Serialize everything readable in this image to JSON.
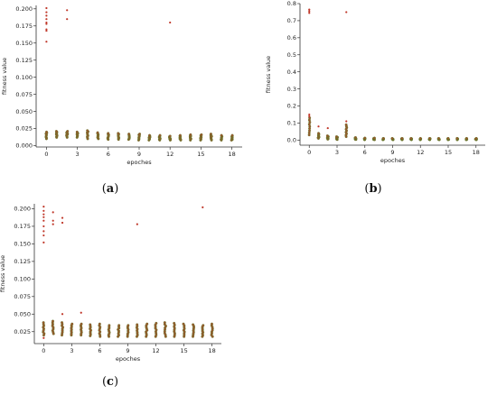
{
  "chart_data": [
    {
      "type": "scatter",
      "panel": "(a)",
      "panel_letter": "a",
      "xlabel": "epoches",
      "ylabel": "fitness value",
      "xlim": [
        -1,
        19
      ],
      "ylim": [
        -0.002,
        0.205
      ],
      "xticks": [
        0,
        3,
        6,
        9,
        12,
        15,
        18
      ],
      "yticks": [
        0.0,
        0.025,
        0.05,
        0.075,
        0.1,
        0.125,
        0.15,
        0.175,
        0.2
      ],
      "ytick_labels": [
        "0.000",
        "0.025",
        "0.050",
        "0.075",
        "0.100",
        "0.125",
        "0.150",
        "0.175",
        "0.200"
      ],
      "outliers": [
        [
          0,
          0.201
        ],
        [
          0,
          0.195
        ],
        [
          0,
          0.19
        ],
        [
          0,
          0.185
        ],
        [
          0,
          0.18
        ],
        [
          0,
          0.178
        ],
        [
          0,
          0.17
        ],
        [
          0,
          0.168
        ],
        [
          0,
          0.152
        ],
        [
          2,
          0.198
        ],
        [
          2,
          0.185
        ],
        [
          12,
          0.18
        ]
      ],
      "clusters": [
        {
          "x": 0,
          "low": 0.01,
          "high": 0.02
        },
        {
          "x": 1,
          "low": 0.012,
          "high": 0.021
        },
        {
          "x": 2,
          "low": 0.012,
          "high": 0.021
        },
        {
          "x": 3,
          "low": 0.012,
          "high": 0.02
        },
        {
          "x": 4,
          "low": 0.01,
          "high": 0.022
        },
        {
          "x": 5,
          "low": 0.01,
          "high": 0.019
        },
        {
          "x": 6,
          "low": 0.009,
          "high": 0.018
        },
        {
          "x": 7,
          "low": 0.009,
          "high": 0.018
        },
        {
          "x": 8,
          "low": 0.009,
          "high": 0.017
        },
        {
          "x": 9,
          "low": 0.008,
          "high": 0.017
        },
        {
          "x": 10,
          "low": 0.008,
          "high": 0.015
        },
        {
          "x": 11,
          "low": 0.008,
          "high": 0.015
        },
        {
          "x": 12,
          "low": 0.008,
          "high": 0.014
        },
        {
          "x": 13,
          "low": 0.008,
          "high": 0.015
        },
        {
          "x": 14,
          "low": 0.008,
          "high": 0.016
        },
        {
          "x": 15,
          "low": 0.008,
          "high": 0.016
        },
        {
          "x": 16,
          "low": 0.008,
          "high": 0.017
        },
        {
          "x": 17,
          "low": 0.008,
          "high": 0.015
        },
        {
          "x": 18,
          "low": 0.008,
          "high": 0.015
        }
      ]
    },
    {
      "type": "scatter",
      "panel": "(b)",
      "panel_letter": "b",
      "xlabel": "epoches",
      "ylabel": "fitness value",
      "xlim": [
        -1,
        19
      ],
      "ylim": [
        -0.03,
        0.8
      ],
      "xticks": [
        0,
        3,
        6,
        9,
        12,
        15,
        18
      ],
      "yticks": [
        0.0,
        0.1,
        0.2,
        0.3,
        0.4,
        0.5,
        0.6,
        0.7,
        0.8
      ],
      "ytick_labels": [
        "0.0",
        "0.1",
        "0.2",
        "0.3",
        "0.4",
        "0.5",
        "0.6",
        "0.7",
        "0.8"
      ],
      "outliers": [
        [
          0,
          0.765
        ],
        [
          0,
          0.755
        ],
        [
          0,
          0.745
        ],
        [
          4,
          0.75
        ],
        [
          0,
          0.15
        ],
        [
          0,
          0.14
        ],
        [
          1,
          0.08
        ],
        [
          2,
          0.07
        ],
        [
          4,
          0.11
        ]
      ],
      "clusters": [
        {
          "x": 0,
          "low": 0.03,
          "high": 0.13
        },
        {
          "x": 1,
          "low": 0.01,
          "high": 0.04
        },
        {
          "x": 2,
          "low": 0.005,
          "high": 0.025
        },
        {
          "x": 3,
          "low": 0.003,
          "high": 0.02
        },
        {
          "x": 4,
          "low": 0.02,
          "high": 0.09
        },
        {
          "x": 5,
          "low": 0.003,
          "high": 0.015
        },
        {
          "x": 6,
          "low": 0.002,
          "high": 0.012
        },
        {
          "x": 7,
          "low": 0.002,
          "high": 0.012
        },
        {
          "x": 8,
          "low": 0.002,
          "high": 0.01
        },
        {
          "x": 9,
          "low": 0.002,
          "high": 0.01
        },
        {
          "x": 10,
          "low": 0.002,
          "high": 0.01
        },
        {
          "x": 11,
          "low": 0.002,
          "high": 0.01
        },
        {
          "x": 12,
          "low": 0.002,
          "high": 0.01
        },
        {
          "x": 13,
          "low": 0.002,
          "high": 0.01
        },
        {
          "x": 14,
          "low": 0.002,
          "high": 0.01
        },
        {
          "x": 15,
          "low": 0.002,
          "high": 0.01
        },
        {
          "x": 16,
          "low": 0.002,
          "high": 0.01
        },
        {
          "x": 17,
          "low": 0.002,
          "high": 0.01
        },
        {
          "x": 18,
          "low": 0.002,
          "high": 0.01
        }
      ]
    },
    {
      "type": "scatter",
      "panel": "(c)",
      "panel_letter": "c",
      "xlabel": "epoches",
      "ylabel": "fitness value",
      "xlim": [
        -1,
        19
      ],
      "ylim": [
        0.008,
        0.207
      ],
      "xticks": [
        0,
        3,
        6,
        9,
        12,
        15,
        18
      ],
      "yticks": [
        0.025,
        0.05,
        0.075,
        0.1,
        0.125,
        0.15,
        0.175,
        0.2
      ],
      "ytick_labels": [
        "0.025",
        "0.050",
        "0.075",
        "0.100",
        "0.125",
        "0.150",
        "0.175",
        "0.200"
      ],
      "outliers": [
        [
          0,
          0.203
        ],
        [
          0,
          0.197
        ],
        [
          0,
          0.192
        ],
        [
          0,
          0.188
        ],
        [
          0,
          0.183
        ],
        [
          0,
          0.175
        ],
        [
          0,
          0.168
        ],
        [
          0,
          0.162
        ],
        [
          0,
          0.152
        ],
        [
          1,
          0.195
        ],
        [
          1,
          0.183
        ],
        [
          1,
          0.178
        ],
        [
          2,
          0.187
        ],
        [
          2,
          0.18
        ],
        [
          10,
          0.178
        ],
        [
          17,
          0.202
        ],
        [
          2,
          0.05
        ],
        [
          4,
          0.052
        ],
        [
          0,
          0.016
        ]
      ],
      "clusters": [
        {
          "x": 0,
          "low": 0.02,
          "high": 0.038
        },
        {
          "x": 1,
          "low": 0.022,
          "high": 0.04
        },
        {
          "x": 2,
          "low": 0.02,
          "high": 0.038
        },
        {
          "x": 3,
          "low": 0.02,
          "high": 0.036
        },
        {
          "x": 4,
          "low": 0.02,
          "high": 0.036
        },
        {
          "x": 5,
          "low": 0.019,
          "high": 0.035
        },
        {
          "x": 6,
          "low": 0.018,
          "high": 0.036
        },
        {
          "x": 7,
          "low": 0.018,
          "high": 0.034
        },
        {
          "x": 8,
          "low": 0.018,
          "high": 0.034
        },
        {
          "x": 9,
          "low": 0.018,
          "high": 0.034
        },
        {
          "x": 10,
          "low": 0.018,
          "high": 0.035
        },
        {
          "x": 11,
          "low": 0.018,
          "high": 0.036
        },
        {
          "x": 12,
          "low": 0.018,
          "high": 0.037
        },
        {
          "x": 13,
          "low": 0.018,
          "high": 0.038
        },
        {
          "x": 14,
          "low": 0.018,
          "high": 0.037
        },
        {
          "x": 15,
          "low": 0.018,
          "high": 0.036
        },
        {
          "x": 16,
          "low": 0.018,
          "high": 0.035
        },
        {
          "x": 17,
          "low": 0.018,
          "high": 0.034
        },
        {
          "x": 18,
          "low": 0.018,
          "high": 0.036
        }
      ]
    }
  ],
  "colors": {
    "point_fill": "#a0522d",
    "point_stroke": "#5a7d2a",
    "outlier": "#c0392b",
    "axis": "#333333"
  }
}
